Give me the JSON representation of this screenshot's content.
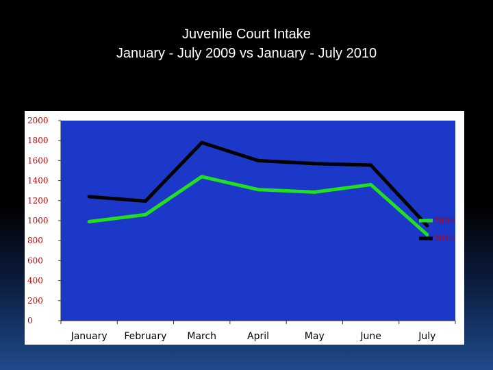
{
  "title": {
    "line1": "Juvenile Court Intake",
    "line2": "January - July 2009 vs January - July 2010"
  },
  "colors": {
    "plot_background": "#1b38c8",
    "series_2009": "#22e01e",
    "series_2010": "#000000",
    "tick_label": "#c00000"
  },
  "chart_data": {
    "type": "line",
    "title": "Juvenile Court Intake January - July 2009 vs January - July 2010",
    "xlabel": "",
    "ylabel": "",
    "categories": [
      "January",
      "February",
      "March",
      "April",
      "May",
      "June",
      "July"
    ],
    "ylim": [
      0,
      2000
    ],
    "yticks": [
      0,
      200,
      400,
      600,
      800,
      1000,
      1200,
      1400,
      1600,
      1800,
      2000
    ],
    "grid": false,
    "legend": "right",
    "series": [
      {
        "name": "2009",
        "values": [
          990,
          1060,
          1440,
          1310,
          1285,
          1360,
          860
        ]
      },
      {
        "name": "2010",
        "values": [
          1240,
          1195,
          1780,
          1600,
          1570,
          1555,
          950
        ]
      }
    ]
  }
}
